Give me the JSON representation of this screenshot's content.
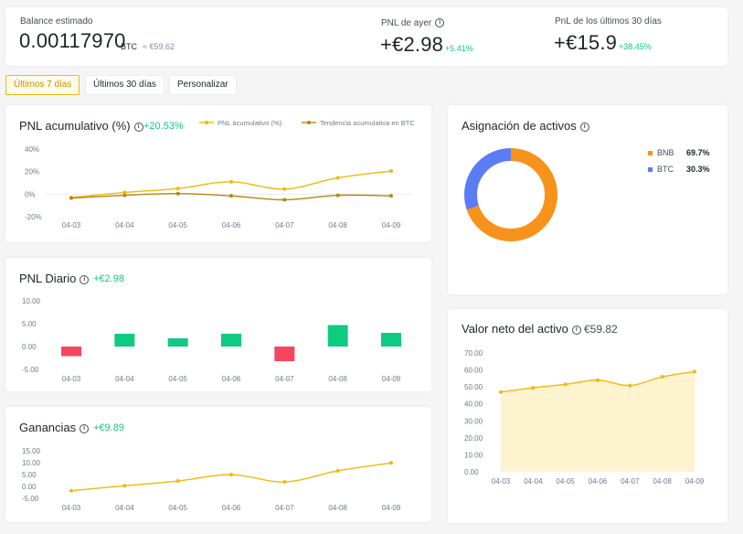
{
  "summary": {
    "balance_label": "Balance estimado",
    "balance_value": "0.00117970",
    "balance_unit": "BTC",
    "balance_fiat": "≈ €59.62",
    "pnl_yesterday_label": "PNL de ayer",
    "pnl_yesterday_value": "+€2.98",
    "pnl_yesterday_pct": "+5.41%",
    "pnl_30d_label": "PnL de los últimos 30 días",
    "pnl_30d_value": "+€15.9",
    "pnl_30d_pct": "+38.45%"
  },
  "tabs": [
    {
      "label": "Últimos 7 días",
      "active": true
    },
    {
      "label": "Últimos 30 días",
      "active": false
    },
    {
      "label": "Personalizar",
      "active": false
    }
  ],
  "cards": {
    "cumulative": {
      "title": "PNL acumulativo (%)",
      "value": "+20.53%"
    },
    "daily": {
      "title": "PNL Diario",
      "value": "+€2.98"
    },
    "profits": {
      "title": "Ganancias",
      "value": "+€9.89"
    },
    "allocation": {
      "title": "Asignación de activos"
    },
    "networth": {
      "title": "Valor neto del activo",
      "value": "€59.82"
    }
  },
  "colors": {
    "accent": "#f0b90b",
    "btc_trend": "#b8860b",
    "up": "#0ecb81",
    "down": "#f6465d",
    "bnb": "#f7931a",
    "btc": "#5b7cf5"
  },
  "chart_data": [
    {
      "id": "cumulative",
      "type": "line",
      "categories": [
        "04-03",
        "04-04",
        "04-05",
        "04-06",
        "04-07",
        "04-08",
        "04-09"
      ],
      "series": [
        {
          "name": "PNL acumulativo (%)",
          "values": [
            -3,
            1.5,
            5,
            11,
            4.5,
            14.5,
            20.5
          ]
        },
        {
          "name": "Tendencia acumulativa en BTC",
          "values": [
            -3.5,
            -1,
            0.5,
            -1.5,
            -5,
            -1,
            -1.5
          ]
        }
      ],
      "yticks": [
        "40%",
        "20%",
        "0%",
        "-20%"
      ],
      "ylim": [
        -20,
        40
      ]
    },
    {
      "id": "daily",
      "type": "bar",
      "categories": [
        "04-03",
        "04-04",
        "04-05",
        "04-06",
        "04-07",
        "04-08",
        "04-09"
      ],
      "values": [
        -2.1,
        2.8,
        1.8,
        2.8,
        -3.2,
        4.7,
        3.0
      ],
      "yticks": [
        "10.00",
        "5.00",
        "0.00",
        "-5.00"
      ],
      "ylim": [
        -5,
        10
      ]
    },
    {
      "id": "profits",
      "type": "line",
      "categories": [
        "04-03",
        "04-04",
        "04-05",
        "04-06",
        "04-07",
        "04-08",
        "04-09"
      ],
      "values": [
        -1.8,
        0.3,
        2.3,
        5.0,
        1.9,
        6.6,
        9.9
      ],
      "yticks": [
        "15.00",
        "10.00",
        "5.00",
        "0.00",
        "-5.00"
      ],
      "ylim": [
        -5,
        15
      ]
    },
    {
      "id": "allocation",
      "type": "pie",
      "labels": [
        "BNB",
        "BTC"
      ],
      "values": [
        69.7,
        30.3
      ],
      "display": [
        "69.7%",
        "30.3%"
      ]
    },
    {
      "id": "networth",
      "type": "area",
      "categories": [
        "04-03",
        "04-04",
        "04-05",
        "04-06",
        "04-07",
        "04-08",
        "04-09"
      ],
      "values": [
        47,
        49.5,
        51.5,
        54,
        50.8,
        56,
        59
      ],
      "yticks": [
        "70.00",
        "60.00",
        "50.00",
        "40.00",
        "30.00",
        "20.00",
        "10.00",
        "0.00"
      ],
      "ylim": [
        0,
        70
      ]
    }
  ]
}
